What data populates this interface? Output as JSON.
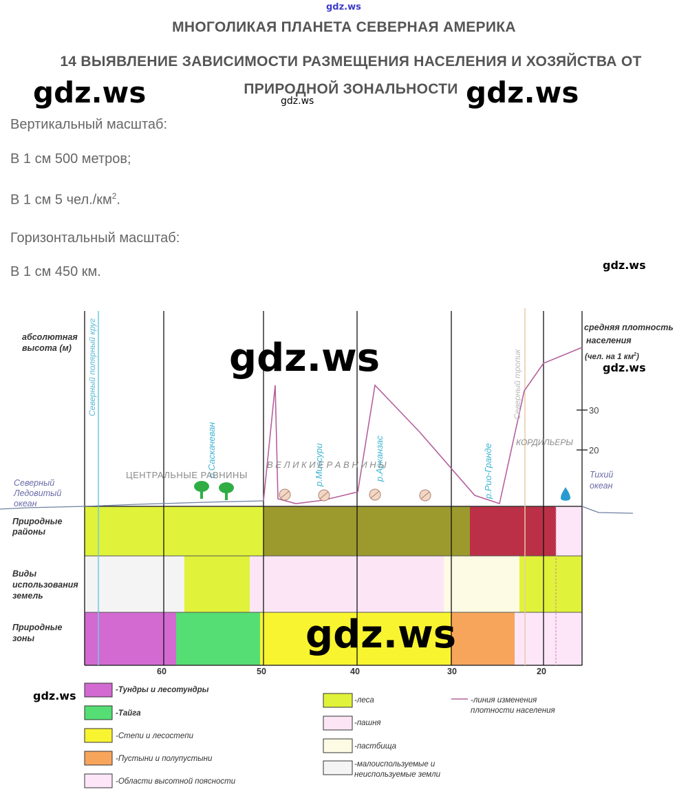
{
  "watermarks": {
    "top": "gdz.ws",
    "big_left": "gdz.ws",
    "big_right": "gdz.ws",
    "small_under_title": "gdz.ws",
    "small_right_1": "gdz.ws",
    "big_center": "gdz.ws",
    "small_right_2": "gdz.ws",
    "big_bottom": "gdz.ws",
    "small_bottom_left": "gdz.ws"
  },
  "header": {
    "title": "МНОГОЛИКАЯ ПЛАНЕТА СЕВЕРНАЯ АМЕРИКА",
    "subtitle_line1": "14 ВЫЯВЛЕНИЕ ЗАВИСИМОСТИ РАЗМЕЩЕНИЯ НАСЕЛЕНИЯ И ХОЗЯЙСТВА ОТ",
    "subtitle_line2": "ПРИРОДНОЙ ЗОНАЛЬНОСТИ"
  },
  "scales": {
    "vertical_label": "Вертикальный масштаб:",
    "vertical_1": "В 1 см 500 метров;",
    "vertical_2_main": "В 1 см 5 чел./км",
    "vertical_2_sup": "2",
    "vertical_2_end": ".",
    "horizontal_label": "Горизонтальный масштаб:",
    "horizontal_1": "В 1 см 450 км."
  },
  "profile": {
    "left_axis_label_1": "абсолютная",
    "left_axis_label_2": "высота (м)",
    "right_axis_label_1": "средняя плотность",
    "right_axis_label_2": "населения",
    "right_axis_label_3": "(чел. на 1 км",
    "right_axis_label_3_sup": "2",
    "right_axis_label_3_end": ")",
    "density_ticks": [
      "30",
      "20"
    ],
    "arctic_circle": "Северный полярный круг",
    "tropic": "Северный тропик",
    "river_1": "р.Саскачеван",
    "river_2": "р.Миссури",
    "river_3": "р.Арканзас",
    "river_4": "р.Рио-Гранде",
    "plains_central": "ЦЕНТРАЛЬНЫЕ РАВНИНЫ",
    "plains_great": "В Е Л И К И Е   Р А В Н И Н Ы",
    "cordillera": "КОРДИЛЬЕРЫ",
    "ocean_north_1": "Северный",
    "ocean_north_2": "Ледовитый",
    "ocean_north_3": "океан",
    "ocean_pacific_1": "Тихий",
    "ocean_pacific_2": "океан"
  },
  "rows": {
    "row1_1": "Природные",
    "row1_2": "районы",
    "row2_1": "Виды",
    "row2_2": "использования",
    "row2_3": "земель",
    "row3_1": "Природные",
    "row3_2": "зоны"
  },
  "x_axis_ticks": [
    "60",
    "50",
    "40",
    "30",
    "20"
  ],
  "colors": {
    "tundra": "#d26ad1",
    "taiga": "#55de74",
    "steppe": "#f8f430",
    "desert": "#f8a55c",
    "altitude": "#fce6f8",
    "forest": "#e0f23a",
    "arable": "#fce6f6",
    "pasture": "#fdfbe3",
    "unused": "#f4f4f4",
    "olive": "#9c9a2c",
    "crimson": "#bb3046",
    "density_line": "#b4609c"
  },
  "legend": {
    "tundra": "-Тундры и лесотундры",
    "taiga": "-Тайга",
    "steppe": "-Степи и лесостепи",
    "desert": "-Пустыни и полупустыни",
    "altitude": "-Области высотной поясности",
    "forest": "-леса",
    "arable": "-пашня",
    "pasture": "-пастбища",
    "unused_1": "-малоиспользуемые и",
    "unused_2": "неиспользуемые земли",
    "density_1": "-линия изменения",
    "density_2": "плотности населения"
  }
}
